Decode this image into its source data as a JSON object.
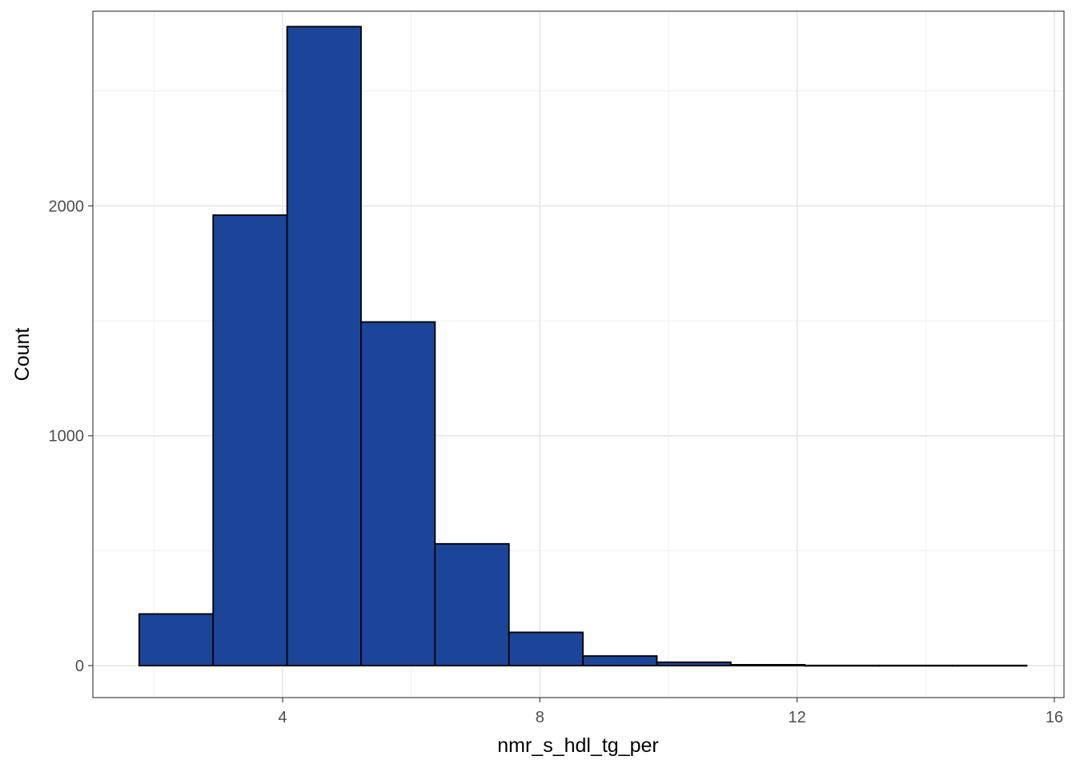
{
  "chart_data": {
    "type": "histogram",
    "xlabel": "nmr_s_hdl_tg_per",
    "ylabel": "Count",
    "xlim": [
      1.05,
      16.15
    ],
    "ylim": [
      -139,
      2847
    ],
    "x_ticks": [
      4,
      8,
      12,
      16
    ],
    "y_ticks": [
      0,
      1000,
      2000
    ],
    "x_minor": [
      2,
      6,
      10,
      14
    ],
    "y_minor": [
      500,
      1500,
      2500
    ],
    "grid": true,
    "fill_color": "#1A4599",
    "edge_color": "#000000",
    "bins": [
      {
        "x0": 1.77,
        "x1": 2.92,
        "count": 225
      },
      {
        "x0": 2.92,
        "x1": 4.07,
        "count": 1960
      },
      {
        "x0": 4.07,
        "x1": 5.22,
        "count": 2780
      },
      {
        "x0": 5.22,
        "x1": 6.37,
        "count": 1495
      },
      {
        "x0": 6.37,
        "x1": 7.52,
        "count": 530
      },
      {
        "x0": 7.52,
        "x1": 8.67,
        "count": 145
      },
      {
        "x0": 8.67,
        "x1": 9.82,
        "count": 42
      },
      {
        "x0": 9.82,
        "x1": 10.97,
        "count": 15
      },
      {
        "x0": 10.97,
        "x1": 12.12,
        "count": 4
      },
      {
        "x0": 12.12,
        "x1": 13.27,
        "count": 1
      },
      {
        "x0": 13.27,
        "x1": 14.42,
        "count": 1
      },
      {
        "x0": 14.42,
        "x1": 15.57,
        "count": 1
      }
    ]
  }
}
